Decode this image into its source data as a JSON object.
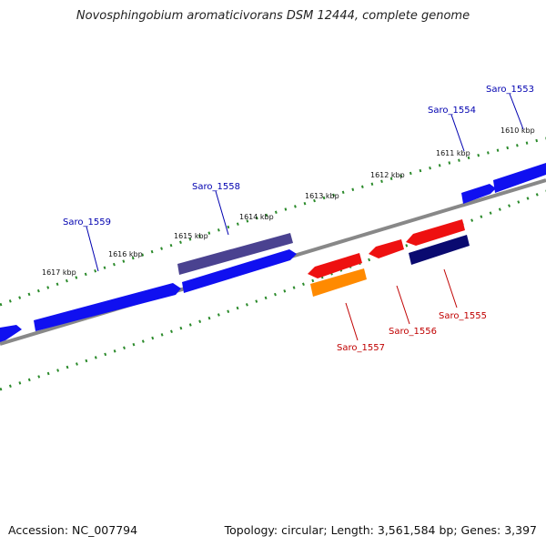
{
  "title": "Novosphingobium aromaticivorans DSM 12444, complete genome",
  "accession": "Accession: NC_007794",
  "summary": "Topology: circular; Length: 3,561,584 bp; Genes: 3,397",
  "colors": {
    "forward_gene": "#1010f0",
    "reverse_gene": "#ee1010",
    "forward_dark": "#4a4290",
    "reverse_dark": "#0a0a70",
    "reverse_orange": "#ff8a00",
    "ruler": "#2a8a2a",
    "backbone": "#888888",
    "forward_label": "#0000b0",
    "reverse_label": "#c00000"
  },
  "kbp_labels": [
    "1617 kbp",
    "1616 kbp",
    "1615 kbp",
    "1614 kbp",
    "1613 kbp",
    "1612 kbp",
    "1611 kbp",
    "1610 kbp"
  ],
  "forward_genes": [
    "Saro_1559",
    "Saro_1558",
    "Saro_1554",
    "Saro_1553"
  ],
  "reverse_genes": [
    "Saro_1557",
    "Saro_1556",
    "Saro_1555"
  ]
}
